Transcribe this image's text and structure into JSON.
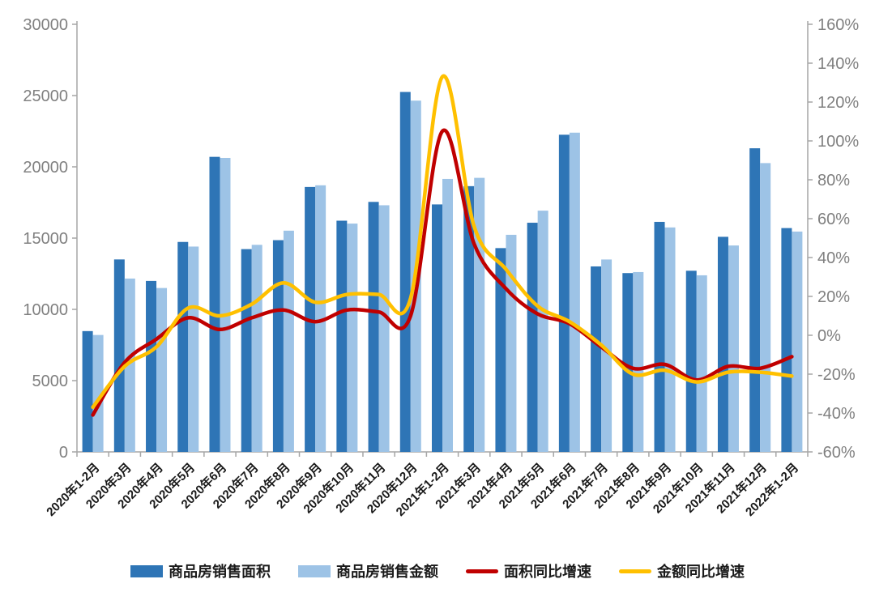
{
  "chart_data": {
    "type": "combo-bar-line",
    "grid": false,
    "legend_position": "bottom",
    "categories": [
      "2020年1-2月",
      "2020年3月",
      "2020年4月",
      "2020年5月",
      "2020年6月",
      "2020年7月",
      "2020年8月",
      "2020年9月",
      "2020年10月",
      "2020年11月",
      "2020年12月",
      "2021年1-2月",
      "2021年3月",
      "2021年4月",
      "2021年5月",
      "2021年6月",
      "2021年7月",
      "2021年8月",
      "2021年9月",
      "2021年10月",
      "2021年11月",
      "2021年12月",
      "2022年1-2月"
    ],
    "series": [
      {
        "name": "商品房销售面积",
        "type": "bar",
        "axis": "left",
        "color": "#2E75B6",
        "values": [
          8475,
          13503,
          11995,
          14730,
          20701,
          14227,
          14855,
          18587,
          16221,
          17540,
          25252,
          17363,
          18644,
          14298,
          16078,
          22252,
          13013,
          12545,
          16139,
          12709,
          15090,
          21302,
          15703
        ]
      },
      {
        "name": "商品房销售金额",
        "type": "bar",
        "axis": "left",
        "color": "#9DC3E6",
        "values": [
          8203,
          12162,
          11498,
          14406,
          20626,
          14527,
          15521,
          18704,
          16018,
          17304,
          24644,
          19151,
          19227,
          15231,
          16925,
          22397,
          13499,
          12617,
          15748,
          12390,
          14482,
          20263,
          15459
        ]
      },
      {
        "name": "面积同比增速",
        "type": "line",
        "axis": "right",
        "color": "#C00000",
        "values_pct": [
          -41,
          -14,
          -2,
          9,
          3,
          9,
          13,
          7,
          13,
          12,
          10,
          105,
          47,
          24,
          11,
          6,
          -6,
          -17,
          -15,
          -23,
          -16,
          -17,
          -11
        ]
      },
      {
        "name": "金额同比增速",
        "type": "line",
        "axis": "right",
        "color": "#FFC000",
        "values_pct": [
          -37,
          -16,
          -6,
          14,
          10,
          16,
          27,
          17,
          21,
          21,
          19,
          133,
          56,
          34,
          15,
          7,
          -5,
          -20,
          -18,
          -24,
          -19,
          -19,
          -21
        ]
      }
    ],
    "left_axis": {
      "min": 0,
      "max": 30000,
      "step": 5000,
      "tick_labels": [
        "0",
        "5000",
        "10000",
        "15000",
        "20000",
        "25000",
        "30000"
      ]
    },
    "right_axis": {
      "min": -60,
      "max": 160,
      "step": 20,
      "tick_labels": [
        "-60%",
        "-40%",
        "-20%",
        "0%",
        "20%",
        "40%",
        "60%",
        "80%",
        "100%",
        "120%",
        "140%",
        "160%"
      ]
    }
  },
  "style": {
    "axis_line_color": "#A6A6A6",
    "y_tick_text_color": "#808080",
    "x_tick_text_color": "#1a1a1a",
    "background": "#ffffff"
  }
}
